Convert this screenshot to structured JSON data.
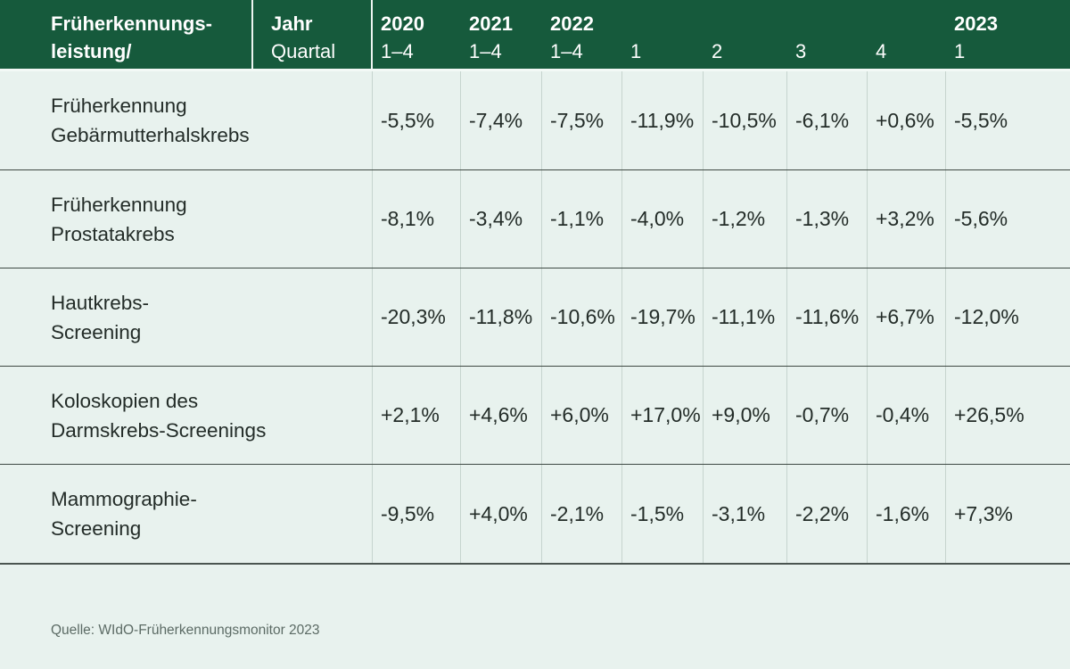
{
  "colors": {
    "header_green": "#165A3C",
    "background_mint": "#E8F2EE",
    "column_divider": "#C6D4CE",
    "row_separator": "#3E4943",
    "header_text": "#FFFFFF",
    "body_text": "#232C28",
    "source_text": "#5C6B65"
  },
  "header": {
    "col1_line1": "Früherkennungs-",
    "col1_line2": "leistung/",
    "col2_line1": "Jahr",
    "col2_line2": "Quartal",
    "periods": [
      {
        "year": "2020",
        "quarter": "1–4"
      },
      {
        "year": "2021",
        "quarter": "1–4"
      },
      {
        "year": "2022",
        "quarter": "1–4"
      },
      {
        "year": "",
        "quarter": "1"
      },
      {
        "year": "",
        "quarter": "2"
      },
      {
        "year": "",
        "quarter": "3"
      },
      {
        "year": "",
        "quarter": "4"
      },
      {
        "year": "2023",
        "quarter": "1"
      }
    ]
  },
  "rows": [
    {
      "label_lines": [
        "Früherkennung",
        "Gebärmutterhalskrebs"
      ],
      "values": [
        "-5,5%",
        "-7,4%",
        "-7,5%",
        "-11,9%",
        "-10,5%",
        "-6,1%",
        "+0,6%",
        "-5,5%"
      ]
    },
    {
      "label_lines": [
        "Früherkennung",
        "Prostatakrebs"
      ],
      "values": [
        "-8,1%",
        "-3,4%",
        "-1,1%",
        "-4,0%",
        "-1,2%",
        "-1,3%",
        "+3,2%",
        "-5,6%"
      ]
    },
    {
      "label_lines": [
        "Hautkrebs-",
        "Screening"
      ],
      "values": [
        "-20,3%",
        "-11,8%",
        "-10,6%",
        "-19,7%",
        "-11,1%",
        "-11,6%",
        "+6,7%",
        "-12,0%"
      ]
    },
    {
      "label_lines": [
        "Koloskopien des",
        "Darmskrebs-Screenings"
      ],
      "values": [
        "+2,1%",
        "+4,6%",
        "+6,0%",
        "+17,0%",
        "+9,0%",
        "-0,7%",
        "-0,4%",
        "+26,5%"
      ]
    },
    {
      "label_lines": [
        "Mammographie-",
        "Screening"
      ],
      "values": [
        "-9,5%",
        "+4,0%",
        "-2,1%",
        "-1,5%",
        "-3,1%",
        "-2,2%",
        "-1,6%",
        "+7,3%"
      ]
    }
  ],
  "footer": {
    "source": "Quelle: WIdO-Früherkennungsmonitor 2023"
  },
  "chart_data": {
    "type": "table",
    "title": "Früherkennungsleistung nach Jahr/Quartal (prozentuale Veränderung)",
    "columns": [
      "2020 1–4",
      "2021 1–4",
      "2022 1–4",
      "2022 Q1",
      "2022 Q2",
      "2022 Q3",
      "2022 Q4",
      "2023 Q1"
    ],
    "rows": [
      {
        "label": "Früherkennung Gebärmutterhalskrebs",
        "values_pct": [
          -5.5,
          -7.4,
          -7.5,
          -11.9,
          -10.5,
          -6.1,
          0.6,
          -5.5
        ]
      },
      {
        "label": "Früherkennung Prostatakrebs",
        "values_pct": [
          -8.1,
          -3.4,
          -1.1,
          -4.0,
          -1.2,
          -1.3,
          3.2,
          -5.6
        ]
      },
      {
        "label": "Hautkrebs-Screening",
        "values_pct": [
          -20.3,
          -11.8,
          -10.6,
          -19.7,
          -11.1,
          -11.6,
          6.7,
          -12.0
        ]
      },
      {
        "label": "Koloskopien des Darmskrebs-Screenings",
        "values_pct": [
          2.1,
          4.6,
          6.0,
          17.0,
          9.0,
          -0.7,
          -0.4,
          26.5
        ]
      },
      {
        "label": "Mammographie-Screening",
        "values_pct": [
          -9.5,
          4.0,
          -2.1,
          -1.5,
          -3.1,
          -2.2,
          -1.6,
          7.3
        ]
      }
    ],
    "source": "Quelle: WIdO-Früherkennungsmonitor 2023"
  }
}
